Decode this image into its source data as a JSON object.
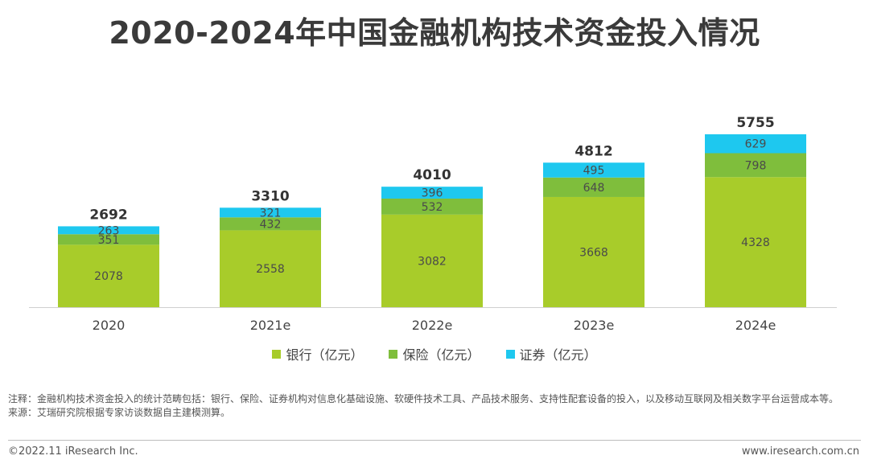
{
  "title": "2020-2024年中国金融机构技术资金投入情况",
  "colors": {
    "bank": "#a8cc2a",
    "insurance": "#7fbe3c",
    "securities": "#1ec8ef",
    "axis": "#d0d0d0",
    "total_label": "#333333"
  },
  "chart_data": {
    "type": "bar",
    "stacked": true,
    "categories": [
      "2020",
      "2021e",
      "2022e",
      "2023e",
      "2024e"
    ],
    "series": [
      {
        "name": "银行（亿元）",
        "values": [
          2078,
          2558,
          3082,
          3668,
          4328
        ]
      },
      {
        "name": "保险（亿元）",
        "values": [
          351,
          432,
          532,
          648,
          798
        ]
      },
      {
        "name": "证券（亿元）",
        "values": [
          263,
          321,
          396,
          495,
          629
        ]
      }
    ],
    "totals": [
      2692,
      3310,
      4010,
      4812,
      5755
    ],
    "xlabel": "",
    "ylabel": "",
    "ylim": [
      0,
      5755
    ],
    "grid": false,
    "legend": "bottom"
  },
  "notes": {
    "note": "注释：金融机构技术资金投入的统计范畴包括：银行、保险、证券机构对信息化基础设施、软硬件技术工具、产品技术服务、支持性配套设备的投入，以及移动互联网及相关数字平台运营成本等。",
    "source": "来源：艾瑞研究院根据专家访谈数据自主建模测算。"
  },
  "footer": {
    "copyright": "©2022.11 iResearch Inc.",
    "website": "www.iresearch.com.cn"
  }
}
